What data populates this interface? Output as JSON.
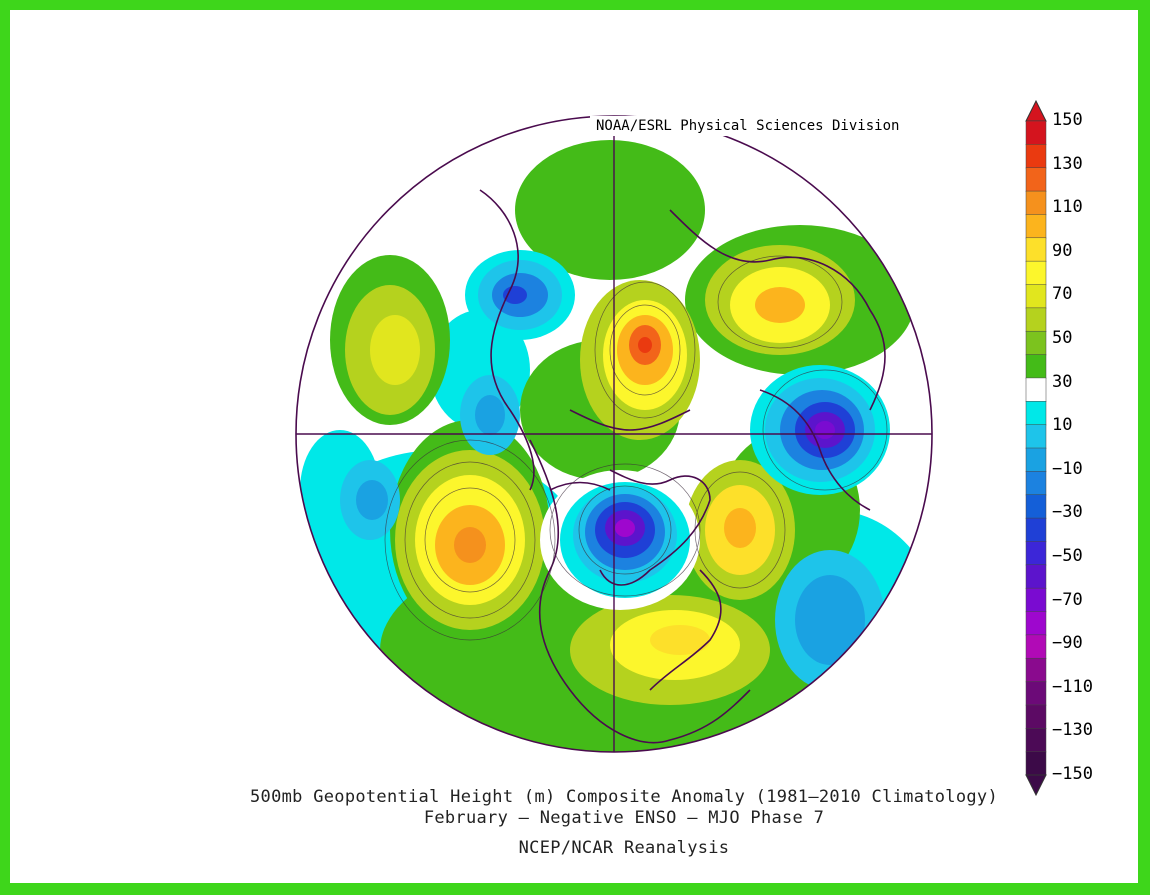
{
  "credit": "NOAA/ESRL Physical Sciences Division",
  "caption": {
    "line1": "500mb Geopotential Height (m) Composite Anomaly (1981–2010 Climatology)",
    "line2": "February – Negative ENSO – MJO Phase 7",
    "line3": "NCEP/NCAR Reanalysis"
  },
  "colorbar": {
    "labels": [
      "150",
      "130",
      "110",
      "90",
      "70",
      "50",
      "30",
      "10",
      "−10",
      "−30",
      "−50",
      "−70",
      "−90",
      "−110",
      "−130",
      "−150"
    ],
    "colors": [
      "#d4141e",
      "#ea3a10",
      "#f2641a",
      "#f5911d",
      "#fcb41d",
      "#fde02a",
      "#fcf62c",
      "#e1e61e",
      "#b5d21e",
      "#7cc31e",
      "#44bb18",
      "#ffffff",
      "#00e8e8",
      "#1ec4ea",
      "#1aa2e2",
      "#1c82e0",
      "#145fd8",
      "#1f40d6",
      "#3c26d8",
      "#5c14cc",
      "#7a0bd1",
      "#9e07ce",
      "#b10ab6",
      "#8a0a8e",
      "#6c0a78",
      "#5c0a64",
      "#4c0a56",
      "#3c0a48"
    ]
  },
  "colors": {
    "frame": "#3ed61b",
    "background": "#ffffff",
    "coastline": "#4a0b4e",
    "contour": "#3a2a3a"
  }
}
